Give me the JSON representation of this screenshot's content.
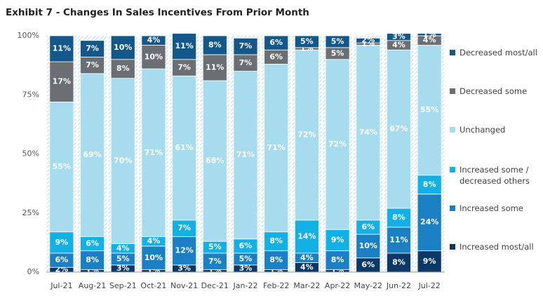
{
  "chart_data": {
    "type": "bar",
    "stacked": true,
    "title": "Exhibit 7 - Changes In Sales Incentives From Prior Month",
    "categories": [
      "Jul-21",
      "Aug-21",
      "Sep-21",
      "Oct-21",
      "Nov-21",
      "Dec-21",
      "Jan-22",
      "Feb-22",
      "Mar-22",
      "Apr-22",
      "May-22",
      "Jun-22",
      "Jul-22"
    ],
    "ylim": [
      0,
      100
    ],
    "yticks": [
      {
        "value": 0,
        "label": "0%"
      },
      {
        "value": 25,
        "label": "25%"
      },
      {
        "value": 50,
        "label": "50%"
      },
      {
        "value": 75,
        "label": "75%"
      },
      {
        "value": 100,
        "label": "100%"
      }
    ],
    "series": [
      {
        "name": "Increased most/all",
        "color": "#0c3866",
        "values": [
          2,
          1,
          3,
          1,
          3,
          1,
          3,
          1,
          4,
          1,
          6,
          8,
          9
        ],
        "value_labels": [
          "2%",
          "1%",
          "3%",
          "1%",
          "3%",
          "1%",
          "3%",
          "1%",
          "4%",
          "1%",
          "6%",
          "8%",
          "9%"
        ]
      },
      {
        "name": "Increased some",
        "color": "#1b7fc3",
        "values": [
          6,
          8,
          5,
          10,
          12,
          7,
          5,
          8,
          4,
          8,
          10,
          11,
          24
        ],
        "value_labels": [
          "6%",
          "8%",
          "5%",
          "10%",
          "12%",
          "7%",
          "5%",
          "8%",
          "4%",
          "8%",
          "10%",
          "11%",
          "24%"
        ]
      },
      {
        "name": "Increased some / decreased others",
        "color": "#13b0e6",
        "values": [
          9,
          6,
          4,
          4,
          7,
          5,
          6,
          8,
          14,
          9,
          6,
          8,
          8
        ],
        "value_labels": [
          "9%",
          "6%",
          "4%",
          "4%",
          "7%",
          "5%",
          "6%",
          "8%",
          "14%",
          "9%",
          "6%",
          "8%",
          "8%"
        ]
      },
      {
        "name": "Unchanged",
        "color": "#a6dcee",
        "values": [
          55,
          69,
          70,
          71,
          61,
          68,
          71,
          71,
          72,
          72,
          74,
          67,
          55
        ],
        "value_labels": [
          "55%",
          "69%",
          "70%",
          "71%",
          "61%",
          "68%",
          "71%",
          "71%",
          "72%",
          "72%",
          "74%",
          "67%",
          "55%"
        ]
      },
      {
        "name": "Decreased some",
        "color": "#6b6e72",
        "values": [
          17,
          7,
          8,
          10,
          7,
          11,
          7,
          6,
          1,
          5,
          1,
          4,
          4
        ],
        "value_labels": [
          "17%",
          "7%",
          "8%",
          "10%",
          "7%",
          "11%",
          "7%",
          "6%",
          "1%",
          "5%",
          "1%",
          "4%",
          "4%"
        ]
      },
      {
        "name": "Decreased most/all",
        "color": "#14578a",
        "values": [
          11,
          7,
          10,
          4,
          11,
          8,
          7,
          6,
          5,
          5,
          2,
          3,
          1
        ],
        "value_labels": [
          "11%",
          "7%",
          "10%",
          "4%",
          "11%",
          "8%",
          "7%",
          "6%",
          "5%",
          "5%",
          "2%",
          "3%",
          "1%"
        ]
      }
    ]
  }
}
